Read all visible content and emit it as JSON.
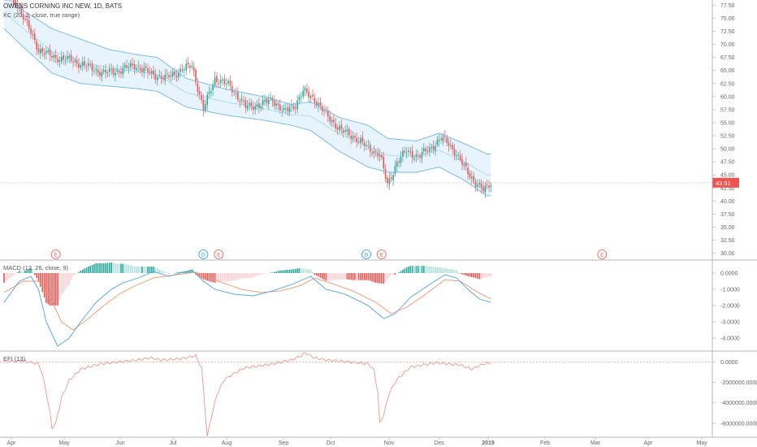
{
  "header": {
    "symbol": "OWENS CORNING INC NEW, 1D, BATS",
    "indicator": "KC (20, 2, close, true range)"
  },
  "macd_label": "MACD (12, 26, close, 9)",
  "efi_label": "EFI (13)",
  "last_price": "43.51",
  "colors": {
    "up": "#26a69a",
    "down": "#ef5350",
    "band": "#6fb7e6",
    "band_fill": "#e3f2fd",
    "macd": "#4ea3e0",
    "signal": "#f5946a",
    "efi": "#ef8a80",
    "earnings": "#ef5350",
    "dividend": "#2196f3"
  },
  "chart_data": [
    {
      "type": "candlestick",
      "title": "OWENS CORNING INC NEW, 1D, BATS",
      "y_ticks": [
        "77.50",
        "75.00",
        "72.50",
        "70.00",
        "67.50",
        "65.00",
        "62.50",
        "60.00",
        "57.50",
        "55.00",
        "52.50",
        "50.00",
        "47.50",
        "45.00",
        "42.50",
        "40.00",
        "37.50",
        "35.00",
        "32.50",
        "30.00"
      ],
      "ylim": [
        29.0,
        78.5
      ],
      "x_ticks": [
        "Apr",
        "May",
        "Jun",
        "Jul",
        "Aug",
        "Sep",
        "Oct",
        "Nov",
        "Dec",
        "2019",
        "Feb",
        "Mar",
        "Apr",
        "May"
      ],
      "last_price": 43.51,
      "keltner_upper_anchors": [
        [
          0,
          79.5
        ],
        [
          10,
          76.5
        ],
        [
          25,
          73.0
        ],
        [
          40,
          71.0
        ],
        [
          55,
          69.0
        ],
        [
          70,
          68.0
        ],
        [
          80,
          67.5
        ],
        [
          95,
          63.5
        ],
        [
          115,
          61.5
        ],
        [
          135,
          60.0
        ],
        [
          150,
          58.5
        ],
        [
          160,
          59.0
        ],
        [
          175,
          56.0
        ],
        [
          190,
          54.5
        ],
        [
          200,
          52.0
        ],
        [
          215,
          51.5
        ],
        [
          227,
          53.0
        ],
        [
          240,
          51.0
        ],
        [
          252,
          49.0
        ]
      ],
      "keltner_lower_anchors": [
        [
          0,
          73.0
        ],
        [
          10,
          69.5
        ],
        [
          25,
          64.5
        ],
        [
          40,
          62.5
        ],
        [
          55,
          62.0
        ],
        [
          70,
          61.5
        ],
        [
          80,
          61.0
        ],
        [
          95,
          58.0
        ],
        [
          115,
          56.5
        ],
        [
          135,
          55.5
        ],
        [
          150,
          54.5
        ],
        [
          160,
          53.5
        ],
        [
          175,
          49.5
        ],
        [
          190,
          46.5
        ],
        [
          200,
          45.5
        ],
        [
          215,
          45.5
        ],
        [
          227,
          46.5
        ],
        [
          240,
          44.0
        ],
        [
          252,
          41.0
        ]
      ],
      "close_anchors": [
        [
          0,
          82.0
        ],
        [
          8,
          77.0
        ],
        [
          18,
          69.0
        ],
        [
          26,
          67.5
        ],
        [
          35,
          67.0
        ],
        [
          45,
          65.5
        ],
        [
          52,
          64.5
        ],
        [
          60,
          65.0
        ],
        [
          68,
          66.0
        ],
        [
          76,
          64.5
        ],
        [
          84,
          63.5
        ],
        [
          92,
          65.0
        ],
        [
          98,
          66.0
        ],
        [
          104,
          57.5
        ],
        [
          110,
          63.5
        ],
        [
          118,
          62.0
        ],
        [
          126,
          58.0
        ],
        [
          134,
          58.5
        ],
        [
          140,
          59.5
        ],
        [
          146,
          57.0
        ],
        [
          152,
          58.5
        ],
        [
          156,
          61.0
        ],
        [
          162,
          59.5
        ],
        [
          168,
          56.5
        ],
        [
          176,
          53.5
        ],
        [
          184,
          52.0
        ],
        [
          190,
          50.0
        ],
        [
          196,
          49.0
        ],
        [
          200,
          43.0
        ],
        [
          205,
          47.5
        ],
        [
          210,
          49.5
        ],
        [
          216,
          48.5
        ],
        [
          222,
          50.0
        ],
        [
          228,
          52.0
        ],
        [
          232,
          51.0
        ],
        [
          236,
          49.0
        ],
        [
          240,
          46.5
        ],
        [
          246,
          43.5
        ],
        [
          250,
          42.0
        ],
        [
          254,
          43.5
        ]
      ]
    },
    {
      "type": "bar+line",
      "title": "MACD (12, 26, close, 9)",
      "y_ticks": [
        "0.0000",
        "-1.0000",
        "-2.0000",
        "-3.0000",
        "-4.0000"
      ],
      "ylim": [
        -4.7,
        0.7
      ],
      "macd_anchors": [
        [
          0,
          -1.8
        ],
        [
          8,
          -0.5
        ],
        [
          14,
          -0.2
        ],
        [
          18,
          -1.0
        ],
        [
          22,
          -3.0
        ],
        [
          28,
          -4.5
        ],
        [
          34,
          -4.0
        ],
        [
          40,
          -3.0
        ],
        [
          48,
          -1.8
        ],
        [
          56,
          -1.0
        ],
        [
          62,
          -0.6
        ],
        [
          70,
          -0.3
        ],
        [
          78,
          0.1
        ],
        [
          86,
          -0.2
        ],
        [
          98,
          0.2
        ],
        [
          104,
          -0.5
        ],
        [
          110,
          -1.0
        ],
        [
          120,
          -1.3
        ],
        [
          130,
          -1.4
        ],
        [
          140,
          -1.1
        ],
        [
          150,
          -0.7
        ],
        [
          160,
          -0.2
        ],
        [
          168,
          -1.0
        ],
        [
          178,
          -1.3
        ],
        [
          190,
          -2.0
        ],
        [
          198,
          -2.8
        ],
        [
          204,
          -2.5
        ],
        [
          212,
          -1.5
        ],
        [
          222,
          -0.7
        ],
        [
          230,
          -0.1
        ],
        [
          236,
          -0.3
        ],
        [
          242,
          -1.0
        ],
        [
          248,
          -1.6
        ],
        [
          254,
          -1.8
        ]
      ],
      "signal_anchors": [
        [
          0,
          -1.2
        ],
        [
          10,
          -0.5
        ],
        [
          18,
          -0.5
        ],
        [
          24,
          -1.5
        ],
        [
          30,
          -3.0
        ],
        [
          36,
          -3.5
        ],
        [
          44,
          -2.8
        ],
        [
          52,
          -2.0
        ],
        [
          60,
          -1.3
        ],
        [
          68,
          -0.8
        ],
        [
          78,
          -0.3
        ],
        [
          90,
          -0.1
        ],
        [
          100,
          0.05
        ],
        [
          106,
          -0.2
        ],
        [
          114,
          -0.6
        ],
        [
          124,
          -1.0
        ],
        [
          134,
          -1.2
        ],
        [
          144,
          -1.1
        ],
        [
          154,
          -0.8
        ],
        [
          162,
          -0.3
        ],
        [
          170,
          -0.6
        ],
        [
          182,
          -1.1
        ],
        [
          194,
          -1.8
        ],
        [
          202,
          -2.5
        ],
        [
          210,
          -2.1
        ],
        [
          220,
          -1.3
        ],
        [
          230,
          -0.4
        ],
        [
          238,
          -0.5
        ],
        [
          246,
          -1.1
        ],
        [
          254,
          -1.6
        ]
      ]
    },
    {
      "type": "line",
      "title": "EFI (13)",
      "y_ticks": [
        "0.0000",
        "-2000000.0000",
        "-4000000.0000",
        "-6000000.0000"
      ],
      "ylim": [
        -7200000,
        900000
      ],
      "efi_anchors": [
        [
          0,
          50000
        ],
        [
          10,
          100000
        ],
        [
          18,
          -200000
        ],
        [
          20,
          -1200000
        ],
        [
          22,
          -3000000
        ],
        [
          24,
          -5000000
        ],
        [
          25,
          -6500000
        ],
        [
          27,
          -6000000
        ],
        [
          30,
          -3500000
        ],
        [
          34,
          -1800000
        ],
        [
          40,
          -700000
        ],
        [
          50,
          -200000
        ],
        [
          60,
          0
        ],
        [
          70,
          200000
        ],
        [
          76,
          400000
        ],
        [
          82,
          200000
        ],
        [
          92,
          300000
        ],
        [
          100,
          600000
        ],
        [
          103,
          -600000
        ],
        [
          104,
          -2500000
        ],
        [
          105,
          -5000000
        ],
        [
          106,
          -7300000
        ],
        [
          108,
          -5500000
        ],
        [
          111,
          -3200000
        ],
        [
          115,
          -1700000
        ],
        [
          125,
          -600000
        ],
        [
          140,
          -200000
        ],
        [
          150,
          200000
        ],
        [
          155,
          600000
        ],
        [
          157,
          900000
        ],
        [
          162,
          400000
        ],
        [
          168,
          200000
        ],
        [
          180,
          0
        ],
        [
          190,
          -200000
        ],
        [
          193,
          -800000
        ],
        [
          195,
          -3000000
        ],
        [
          196,
          -6000000
        ],
        [
          198,
          -5200000
        ],
        [
          201,
          -3000000
        ],
        [
          205,
          -1700000
        ],
        [
          212,
          -500000
        ],
        [
          225,
          -100000
        ],
        [
          232,
          -200000
        ],
        [
          238,
          -300000
        ],
        [
          244,
          -700000
        ],
        [
          250,
          -200000
        ],
        [
          254,
          -100000
        ]
      ]
    }
  ],
  "markers": [
    {
      "label": "E",
      "kind": "earnings",
      "day": 27
    },
    {
      "label": "D",
      "kind": "dividend",
      "day": 104
    },
    {
      "label": "E",
      "kind": "earnings",
      "day": 112
    },
    {
      "label": "D",
      "kind": "dividend",
      "day": 189
    },
    {
      "label": "E",
      "kind": "earnings",
      "day": 197
    },
    {
      "label": "E",
      "kind": "earnings",
      "day": 312
    }
  ]
}
